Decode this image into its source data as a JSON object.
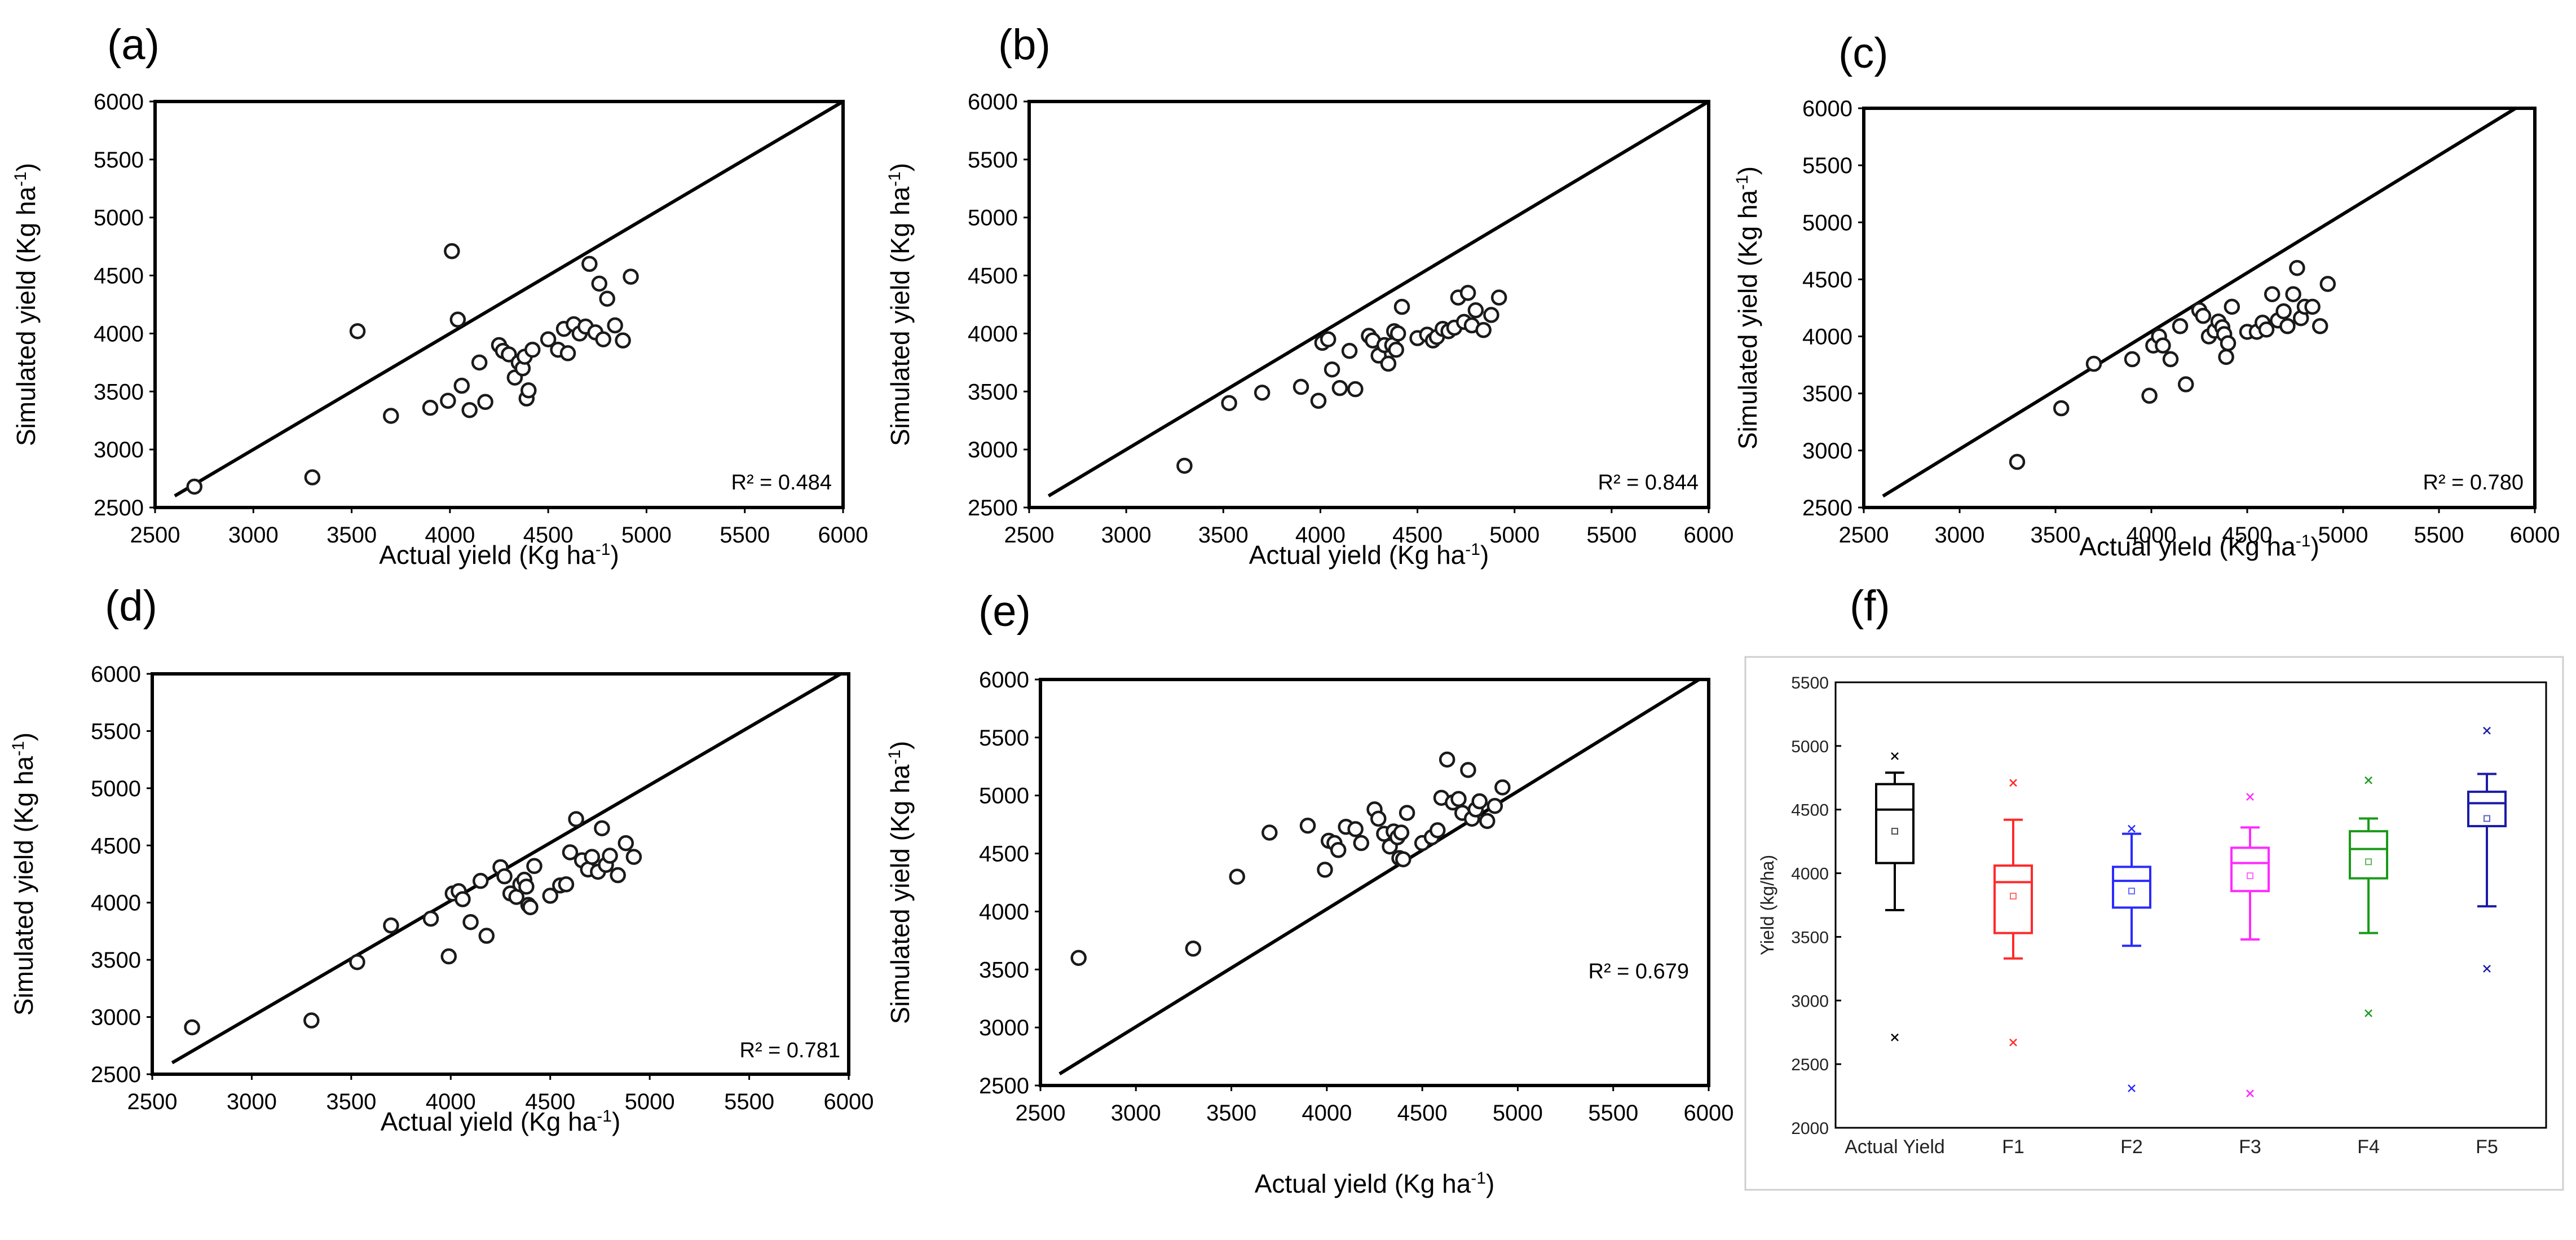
{
  "figure": {
    "panels": [
      {
        "label": "(a)"
      },
      {
        "label": "(b)"
      },
      {
        "label": "(c)"
      },
      {
        "label": "(d)"
      },
      {
        "label": "(e)"
      },
      {
        "label": "(f)"
      }
    ]
  },
  "colors": {
    "axis": "#000000",
    "marker": "#1a1a1a",
    "box_colors": [
      "#000000",
      "#ff2a2a",
      "#2a2aff",
      "#ff2aff",
      "#1a9a1a",
      "#1a1aa8"
    ]
  },
  "chart_data": [
    {
      "panel": "(a)",
      "type": "scatter",
      "xlabel": "Actual yield (Kg ha",
      "xlabel_sup": "-1",
      "xlabel_close": ")",
      "ylabel": "Simulated yield (Kg ha",
      "ylabel_sup": "-1",
      "ylabel_close": ")",
      "xlim": [
        2500,
        6000
      ],
      "ylim": [
        2500,
        6000
      ],
      "xticks": [
        2500,
        3000,
        3500,
        4000,
        4500,
        5000,
        5500,
        6000
      ],
      "yticks": [
        2500,
        3000,
        3500,
        4000,
        4500,
        5000,
        5500,
        6000
      ],
      "line": [
        [
          2600,
          2600
        ],
        [
          6000,
          6000
        ]
      ],
      "r2_label": "R² = 0.484",
      "x": [
        2700,
        3300,
        3530,
        3700,
        3900,
        3990,
        4010,
        4040,
        4060,
        4100,
        4150,
        4180,
        4250,
        4270,
        4300,
        4330,
        4350,
        4370,
        4380,
        4390,
        4400,
        4420,
        4500,
        4550,
        4580,
        4600,
        4630,
        4660,
        4690,
        4710,
        4740,
        4760,
        4780,
        4800,
        4840,
        4880,
        4920
      ],
      "y": [
        2680,
        2760,
        4020,
        3290,
        3360,
        3420,
        4710,
        4120,
        3550,
        3340,
        3750,
        3410,
        3900,
        3850,
        3820,
        3620,
        3750,
        3700,
        3800,
        3440,
        3510,
        3860,
        3950,
        3860,
        4040,
        3830,
        4080,
        4000,
        4060,
        4600,
        4010,
        4430,
        3950,
        4300,
        4070,
        3940,
        4490
      ]
    },
    {
      "panel": "(b)",
      "type": "scatter",
      "xlabel": "Actual yield (Kg ha",
      "xlabel_sup": "-1",
      "xlabel_close": ")",
      "ylabel": "Simulated yield (Kg ha",
      "ylabel_sup": "-1",
      "ylabel_close": ")",
      "xlim": [
        2500,
        6000
      ],
      "ylim": [
        2500,
        6000
      ],
      "xticks": [
        2500,
        3000,
        3500,
        4000,
        4500,
        5000,
        5500,
        6000
      ],
      "yticks": [
        2500,
        3000,
        3500,
        4000,
        4500,
        5000,
        5500,
        6000
      ],
      "line": [
        [
          2600,
          2600
        ],
        [
          6000,
          6000
        ]
      ],
      "r2_label": "R² = 0.844",
      "x": [
        3300,
        3530,
        3700,
        3900,
        3990,
        4010,
        4040,
        4060,
        4100,
        4150,
        4180,
        4250,
        4270,
        4300,
        4330,
        4350,
        4370,
        4380,
        4390,
        4400,
        4420,
        4500,
        4550,
        4580,
        4600,
        4630,
        4660,
        4690,
        4710,
        4740,
        4760,
        4780,
        4800,
        4840,
        4880,
        4920
      ],
      "y": [
        2860,
        3400,
        3490,
        3540,
        3420,
        3920,
        3950,
        3690,
        3530,
        3850,
        3520,
        3980,
        3940,
        3810,
        3900,
        3740,
        3900,
        4020,
        3860,
        4000,
        4230,
        3960,
        3990,
        3940,
        3970,
        4040,
        4020,
        4050,
        4310,
        4100,
        4350,
        4070,
        4200,
        4030,
        4160,
        4310
      ]
    },
    {
      "panel": "(c)",
      "type": "scatter",
      "xlabel": "Actual yield (Kg ha",
      "xlabel_sup": "-1",
      "xlabel_close": ")",
      "ylabel": "Simulated yield (Kg ha",
      "ylabel_sup": "-1",
      "ylabel_close": ")",
      "xlim": [
        2500,
        6000
      ],
      "ylim": [
        2500,
        6000
      ],
      "xticks": [
        2500,
        3000,
        3500,
        4000,
        4500,
        5000,
        5500,
        6000
      ],
      "yticks": [
        2500,
        3000,
        3500,
        4000,
        4500,
        5000,
        5500,
        6000
      ],
      "line": [
        [
          2600,
          2600
        ],
        [
          5900,
          6000
        ]
      ],
      "r2_label": "R² = 0.780",
      "x": [
        3300,
        3530,
        3700,
        3900,
        3990,
        4010,
        4040,
        4060,
        4100,
        4150,
        4180,
        4250,
        4270,
        4300,
        4330,
        4350,
        4370,
        4380,
        4390,
        4400,
        4420,
        4500,
        4550,
        4580,
        4600,
        4630,
        4660,
        4690,
        4710,
        4740,
        4760,
        4780,
        4800,
        4840,
        4880,
        4920
      ],
      "y": [
        2900,
        3370,
        3760,
        3800,
        3480,
        3920,
        4000,
        3920,
        3800,
        4090,
        3580,
        4230,
        4180,
        4000,
        4050,
        4130,
        4080,
        4020,
        3820,
        3940,
        4260,
        4040,
        4040,
        4120,
        4060,
        4370,
        4140,
        4220,
        4090,
        4370,
        4600,
        4160,
        4260,
        4260,
        4090,
        4460
      ]
    },
    {
      "panel": "(d)",
      "type": "scatter",
      "xlabel": "Actual yield (Kg ha",
      "xlabel_sup": "-1",
      "xlabel_close": ")",
      "ylabel": "Simulated yield (Kg ha",
      "ylabel_sup": "-1",
      "ylabel_close": ")",
      "xlim": [
        2500,
        6000
      ],
      "ylim": [
        2500,
        6000
      ],
      "xticks": [
        2500,
        3000,
        3500,
        4000,
        4500,
        5000,
        5500,
        6000
      ],
      "yticks": [
        2500,
        3000,
        3500,
        4000,
        4500,
        5000,
        5500,
        6000
      ],
      "line": [
        [
          2600,
          2600
        ],
        [
          5960,
          6000
        ]
      ],
      "r2_label": "R² = 0.781",
      "x": [
        2700,
        3300,
        3530,
        3700,
        3900,
        3990,
        4010,
        4040,
        4060,
        4100,
        4150,
        4180,
        4250,
        4270,
        4300,
        4330,
        4350,
        4370,
        4380,
        4390,
        4400,
        4420,
        4500,
        4550,
        4580,
        4600,
        4630,
        4660,
        4690,
        4710,
        4740,
        4760,
        4780,
        4800,
        4840,
        4880,
        4920
      ],
      "y": [
        2910,
        2970,
        3480,
        3800,
        3860,
        3530,
        4080,
        4100,
        4030,
        3830,
        4190,
        3710,
        4310,
        4230,
        4080,
        4050,
        4160,
        4200,
        4140,
        3980,
        3960,
        4320,
        4060,
        4150,
        4160,
        4440,
        4730,
        4370,
        4290,
        4400,
        4270,
        4650,
        4330,
        4410,
        4240,
        4520,
        4400
      ]
    },
    {
      "panel": "(e)",
      "type": "scatter",
      "xlabel": "Actual yield (Kg ha",
      "xlabel_sup": "-1",
      "xlabel_close": ")",
      "ylabel": "Simulated yield (Kg ha",
      "ylabel_sup": "-1",
      "ylabel_close": ")",
      "xlim": [
        2500,
        6000
      ],
      "ylim": [
        2500,
        6000
      ],
      "xticks": [
        2500,
        3000,
        3500,
        4000,
        4500,
        5000,
        5500,
        6000
      ],
      "yticks": [
        2500,
        3000,
        3500,
        4000,
        4500,
        5000,
        5500,
        6000
      ],
      "line": [
        [
          2600,
          2600
        ],
        [
          5950,
          6000
        ]
      ],
      "r2_label": "R² = 0.679",
      "x": [
        2700,
        3300,
        3530,
        3700,
        3900,
        3990,
        4010,
        4040,
        4060,
        4100,
        4150,
        4180,
        4250,
        4270,
        4300,
        4330,
        4350,
        4370,
        4380,
        4390,
        4400,
        4420,
        4500,
        4550,
        4580,
        4600,
        4630,
        4660,
        4690,
        4710,
        4740,
        4760,
        4780,
        4800,
        4840,
        4880,
        4920
      ],
      "y": [
        3600,
        3680,
        4300,
        4680,
        4740,
        4360,
        4610,
        4590,
        4530,
        4730,
        4710,
        4590,
        4880,
        4800,
        4670,
        4560,
        4690,
        4640,
        4460,
        4680,
        4450,
        4850,
        4590,
        4640,
        4700,
        4980,
        5310,
        4940,
        4970,
        4850,
        5220,
        4800,
        4880,
        4950,
        4780,
        4910,
        5070
      ]
    },
    {
      "panel": "(f)",
      "type": "box",
      "ylabel": "Yield (kg/ha)",
      "ylim": [
        2000,
        5500
      ],
      "yticks": [
        2000,
        2500,
        3000,
        3500,
        4000,
        4500,
        5000,
        5500
      ],
      "categories": [
        "Actual Yield",
        "F1",
        "F2",
        "F3",
        "F4",
        "F5"
      ],
      "boxes": [
        {
          "name": "Actual Yield",
          "min": 3710,
          "q1": 4080,
          "median": 4500,
          "q3": 4700,
          "max": 4790,
          "mean": 4330,
          "outliers": [
            2710,
            4920
          ]
        },
        {
          "name": "F1",
          "min": 3330,
          "q1": 3530,
          "median": 3930,
          "q3": 4060,
          "max": 4420,
          "mean": 3820,
          "outliers": [
            2670,
            4710
          ]
        },
        {
          "name": "F2",
          "min": 3430,
          "q1": 3730,
          "median": 3940,
          "q3": 4050,
          "max": 4310,
          "mean": 3860,
          "outliers": [
            2310,
            4350
          ]
        },
        {
          "name": "F3",
          "min": 3480,
          "q1": 3860,
          "median": 4080,
          "q3": 4200,
          "max": 4360,
          "mean": 3980,
          "outliers": [
            2270,
            4600
          ]
        },
        {
          "name": "F4",
          "min": 3530,
          "q1": 3960,
          "median": 4190,
          "q3": 4330,
          "max": 4430,
          "mean": 4090,
          "outliers": [
            2900,
            4730
          ]
        },
        {
          "name": "F5",
          "min": 3740,
          "q1": 4370,
          "median": 4550,
          "q3": 4640,
          "max": 4780,
          "mean": 4430,
          "outliers": [
            3250,
            5120
          ]
        }
      ]
    }
  ]
}
